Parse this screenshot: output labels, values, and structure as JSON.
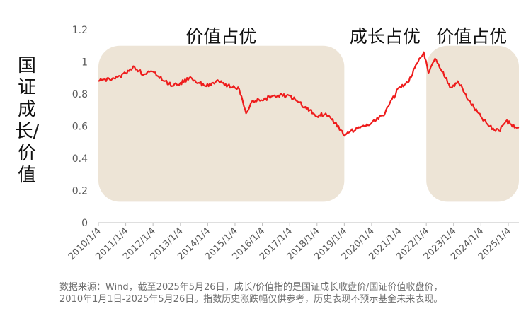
{
  "chart_data": {
    "type": "line",
    "title": "",
    "ylabel_chars": [
      "国",
      "证",
      "成",
      "长/",
      "价",
      "值"
    ],
    "ylim": [
      0,
      1.2
    ],
    "yticks": [
      "0",
      "0.2",
      "0.4",
      "0.6",
      "0.8",
      "1",
      "1.2"
    ],
    "xticks": [
      "2010/1/4",
      "2011/1/4",
      "2012/1/4",
      "2013/1/4",
      "2014/1/4",
      "2015/1/4",
      "2016/1/4",
      "2017/1/4",
      "2018/1/4",
      "2019/1/4",
      "2020/1/4",
      "2021/1/4",
      "2022/1/4",
      "2023/1/4",
      "2024/1/4",
      "2025/1/4"
    ],
    "x_range": [
      "2010-01-04",
      "2025-05-26"
    ],
    "series": [
      {
        "color": "#ee1c1c",
        "points": [
          [
            "2010-01-04",
            0.88
          ],
          [
            "2010-07-01",
            0.89
          ],
          [
            "2011-01-04",
            0.93
          ],
          [
            "2011-05-01",
            0.97
          ],
          [
            "2011-09-01",
            0.92
          ],
          [
            "2012-01-04",
            0.94
          ],
          [
            "2012-06-01",
            0.88
          ],
          [
            "2012-10-01",
            0.85
          ],
          [
            "2013-01-04",
            0.87
          ],
          [
            "2013-06-01",
            0.9
          ],
          [
            "2013-12-01",
            0.85
          ],
          [
            "2014-06-01",
            0.88
          ],
          [
            "2014-12-01",
            0.84
          ],
          [
            "2015-03-01",
            0.83
          ],
          [
            "2015-06-01",
            0.68
          ],
          [
            "2015-09-01",
            0.76
          ],
          [
            "2016-01-04",
            0.76
          ],
          [
            "2016-06-01",
            0.79
          ],
          [
            "2017-01-04",
            0.79
          ],
          [
            "2017-05-01",
            0.75
          ],
          [
            "2017-10-01",
            0.7
          ],
          [
            "2018-01-04",
            0.66
          ],
          [
            "2018-05-01",
            0.68
          ],
          [
            "2018-09-01",
            0.62
          ],
          [
            "2019-01-04",
            0.54
          ],
          [
            "2019-04-01",
            0.57
          ],
          [
            "2019-09-01",
            0.6
          ],
          [
            "2020-01-04",
            0.62
          ],
          [
            "2020-07-01",
            0.68
          ],
          [
            "2021-01-04",
            0.84
          ],
          [
            "2021-05-01",
            0.87
          ],
          [
            "2021-09-01",
            0.99
          ],
          [
            "2021-12-01",
            1.06
          ],
          [
            "2022-02-01",
            0.93
          ],
          [
            "2022-05-01",
            1.02
          ],
          [
            "2022-08-01",
            0.94
          ],
          [
            "2022-12-01",
            0.84
          ],
          [
            "2023-03-01",
            0.88
          ],
          [
            "2023-08-01",
            0.76
          ],
          [
            "2024-01-04",
            0.66
          ],
          [
            "2024-05-01",
            0.6
          ],
          [
            "2024-09-01",
            0.57
          ],
          [
            "2024-12-01",
            0.63
          ],
          [
            "2025-05-26",
            0.59
          ]
        ]
      }
    ],
    "shaded_regions": [
      {
        "start": "2010-01-04",
        "end": "2019-01-04",
        "y_top": 1.1,
        "color": "#ede4d6"
      },
      {
        "start": "2022-01-04",
        "end": "2025-05-26",
        "y_top": 1.1,
        "color": "#ede4d6"
      }
    ],
    "annotations": [
      {
        "text": "价值占优",
        "x": "2014-07-01",
        "y": 1.16
      },
      {
        "text": "成长占优",
        "x": "2020-07-01",
        "y": 1.16
      },
      {
        "text": "价值占优",
        "x": "2023-09-01",
        "y": 1.16
      }
    ]
  },
  "footnote": [
    "数据来源：Wind，截至2025年5月26日，成长/价值指的是国证成长收盘价/国证价值收盘价，",
    "2010年1月1日-2025年5月26日。指数历史涨跌幅仅供参考，历史表现不预示基金未来表现。"
  ]
}
